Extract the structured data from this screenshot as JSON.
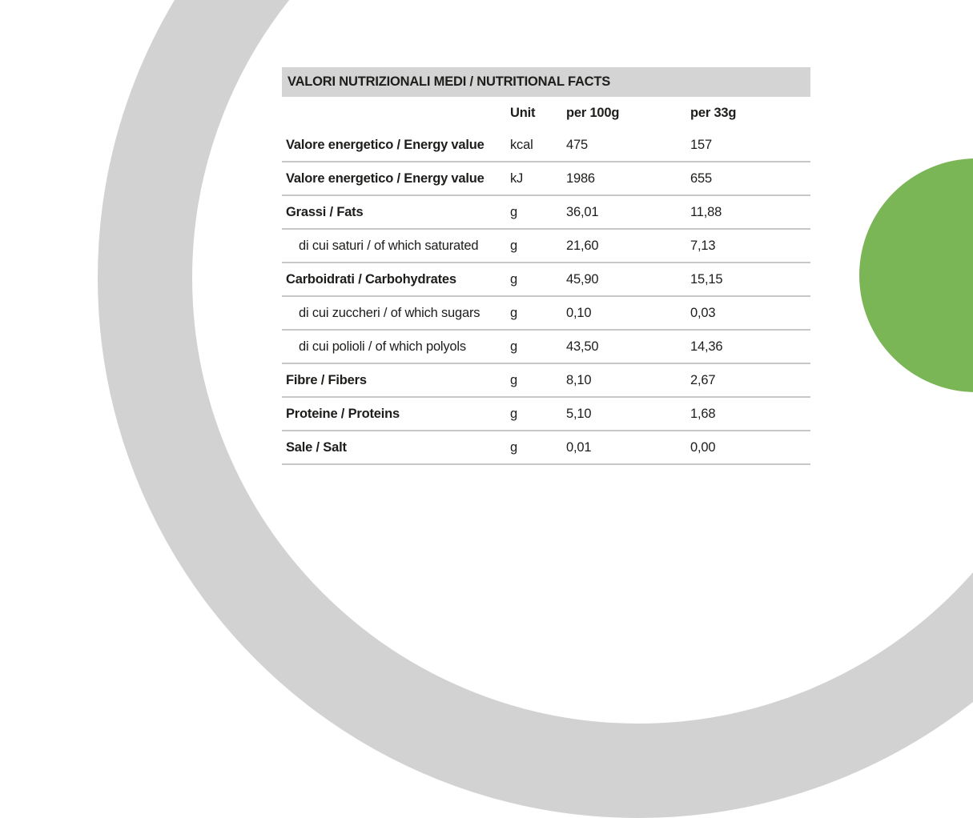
{
  "decor": {
    "ring_color": "#d2d2d2",
    "circle_color": "#7ab556",
    "band_color": "#d4d4d4"
  },
  "table": {
    "title": "VALORI NUTRIZIONALI MEDI / NUTRITIONAL FACTS",
    "columns": {
      "label": "",
      "unit": "Unit",
      "per100": "per 100g",
      "per33": "per 33g"
    },
    "rows": [
      {
        "label": "Valore energetico / Energy value",
        "unit": "kcal",
        "per100": "475",
        "per33": "157",
        "bold": true,
        "indent": false
      },
      {
        "label": "Valore energetico / Energy value",
        "unit": "kJ",
        "per100": "1986",
        "per33": "655",
        "bold": true,
        "indent": false
      },
      {
        "label": "Grassi / Fats",
        "unit": "g",
        "per100": "36,01",
        "per33": "11,88",
        "bold": true,
        "indent": false
      },
      {
        "label": "di cui saturi / of which saturated",
        "unit": "g",
        "per100": "21,60",
        "per33": "7,13",
        "bold": false,
        "indent": true
      },
      {
        "label": "Carboidrati / Carbohydrates",
        "unit": "g",
        "per100": "45,90",
        "per33": "15,15",
        "bold": true,
        "indent": false
      },
      {
        "label": "di cui zuccheri / of which sugars",
        "unit": "g",
        "per100": "0,10",
        "per33": "0,03",
        "bold": false,
        "indent": true
      },
      {
        "label": "di cui polioli / of which polyols",
        "unit": "g",
        "per100": "43,50",
        "per33": "14,36",
        "bold": false,
        "indent": true
      },
      {
        "label": "Fibre / Fibers",
        "unit": "g",
        "per100": "8,10",
        "per33": "2,67",
        "bold": true,
        "indent": false
      },
      {
        "label": "Proteine / Proteins",
        "unit": "g",
        "per100": "5,10",
        "per33": "1,68",
        "bold": true,
        "indent": false
      },
      {
        "label": "Sale / Salt",
        "unit": "g",
        "per100": "0,01",
        "per33": "0,00",
        "bold": true,
        "indent": false
      }
    ]
  }
}
